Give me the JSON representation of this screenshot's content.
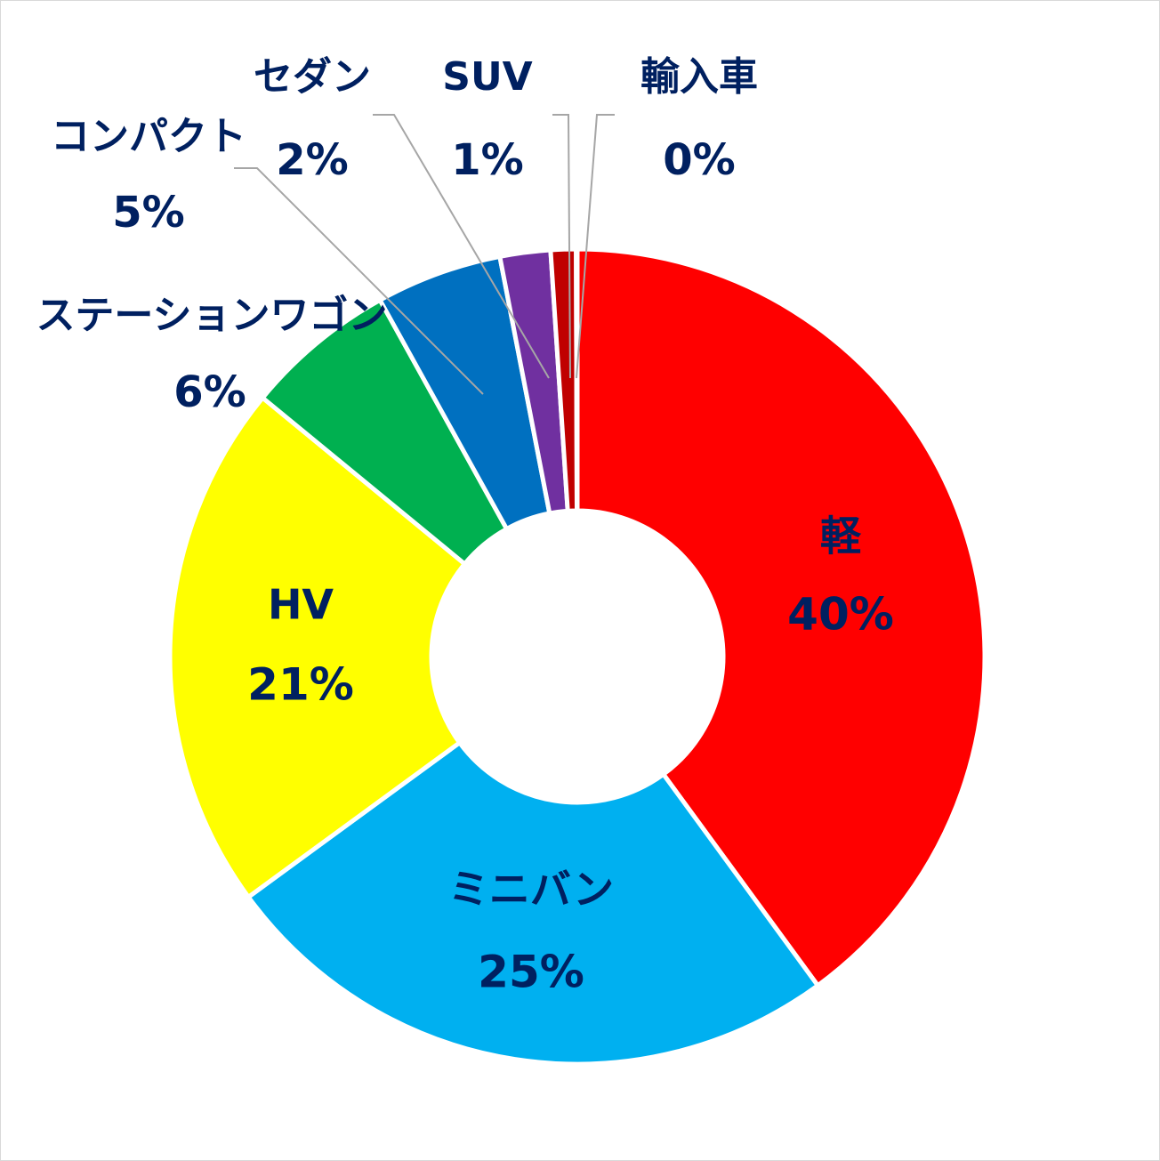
{
  "chart_data": {
    "type": "pie",
    "donut": true,
    "title": "",
    "slices": [
      {
        "label": "軽",
        "value": 40,
        "value_label": "40%",
        "color": "#FF0000"
      },
      {
        "label": "ミニバン",
        "value": 25,
        "value_label": "25%",
        "color": "#00B0F0"
      },
      {
        "label": "HV",
        "value": 21,
        "value_label": "21%",
        "color": "#FFFF00"
      },
      {
        "label": "ステーションワゴン",
        "value": 6,
        "value_label": "6%",
        "color": "#00B050"
      },
      {
        "label": "コンパクト",
        "value": 5,
        "value_label": "5%",
        "color": "#0070C0"
      },
      {
        "label": "セダン",
        "value": 2,
        "value_label": "2%",
        "color": "#7030A0"
      },
      {
        "label": "SUV",
        "value": 1,
        "value_label": "1%",
        "color": "#C00000"
      },
      {
        "label": "輸入車",
        "value": 0,
        "value_label": "0%",
        "color": "#FF0000"
      }
    ],
    "label_color": "#002060",
    "leader_line_color": "#A6A6A6"
  }
}
